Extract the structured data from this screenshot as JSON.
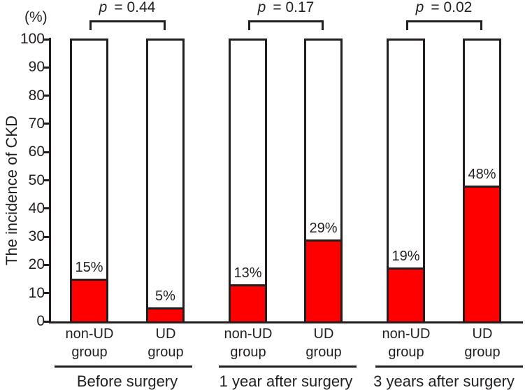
{
  "chart_data": {
    "type": "bar",
    "title": "",
    "ylabel": "The incidence of CKD",
    "y_axis_unit": "(%)",
    "ylim": [
      0,
      100
    ],
    "yticks": [
      0,
      10,
      20,
      30,
      40,
      50,
      60,
      70,
      80,
      90,
      100
    ],
    "grid": false,
    "legend": null,
    "colors": {
      "bar_fill": "#ff0000",
      "bar_background": "#ffffff",
      "bar_outline": "#231f20",
      "text": "#231f20",
      "background": "#ffffff"
    },
    "groups": [
      {
        "label": "Before surgery",
        "p_symbol": "p",
        "p_value": "= 0.44",
        "bars": [
          {
            "label_lines": [
              "non-UD",
              "group"
            ],
            "value": 15,
            "value_label": "15%"
          },
          {
            "label_lines": [
              "UD",
              "group"
            ],
            "value": 5,
            "value_label": "5%"
          }
        ]
      },
      {
        "label": "1 year after surgery",
        "p_symbol": "p",
        "p_value": "= 0.17",
        "bars": [
          {
            "label_lines": [
              "non-UD",
              "group"
            ],
            "value": 13,
            "value_label": "13%"
          },
          {
            "label_lines": [
              "UD",
              "group"
            ],
            "value": 29,
            "value_label": "29%"
          }
        ]
      },
      {
        "label": "3 years after surgery",
        "p_symbol": "p",
        "p_value": "= 0.02",
        "bars": [
          {
            "label_lines": [
              "non-UD",
              "group"
            ],
            "value": 19,
            "value_label": "19%"
          },
          {
            "label_lines": [
              "UD",
              "group"
            ],
            "value": 48,
            "value_label": "48%"
          }
        ]
      }
    ]
  }
}
